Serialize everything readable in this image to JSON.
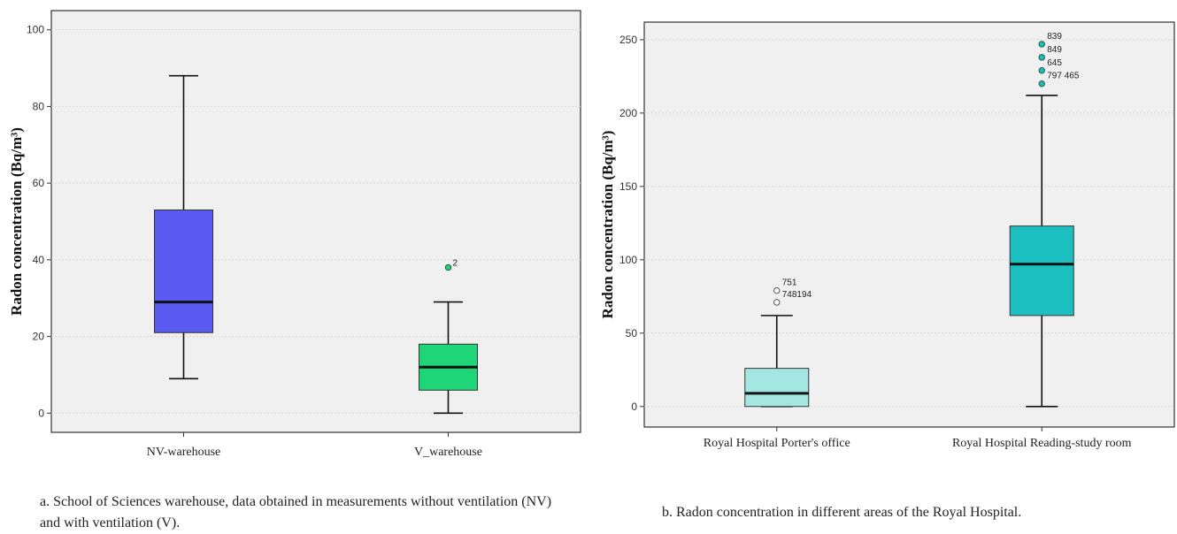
{
  "panels": [
    {
      "caption": "a. School of Sciences warehouse, data obtained in measurements without ventilation (NV) and with ventilation (V).",
      "chart_data": {
        "type": "box",
        "title": "",
        "xlabel": "",
        "ylabel": "Radon concentration (Bq/m³)",
        "ylim": [
          -5,
          105
        ],
        "yticks": [
          0,
          20,
          40,
          60,
          80,
          100
        ],
        "grid": true,
        "categories": [
          "NV-warehouse",
          "V_warehouse"
        ],
        "boxes": [
          {
            "category": "NV-warehouse",
            "min": 9,
            "q1": 21,
            "median": 29,
            "q3": 53,
            "max": 88,
            "color": "#5a5af0",
            "outliers": []
          },
          {
            "category": "V_warehouse",
            "min": 0,
            "q1": 6,
            "median": 12,
            "q3": 18,
            "max": 29,
            "color": "#1ed677",
            "outliers": [
              {
                "value": 38,
                "label": "2",
                "filled": true
              }
            ]
          }
        ]
      }
    },
    {
      "caption": "b. Radon concentration in different areas of the Royal Hospital.",
      "chart_data": {
        "type": "box",
        "title": "",
        "xlabel": "",
        "ylabel": "Radon concentration (Bq/m³)",
        "ylim": [
          -14,
          262
        ],
        "yticks": [
          0,
          50,
          100,
          150,
          200,
          250
        ],
        "grid": true,
        "categories": [
          "Royal Hospital Porter's office",
          "Royal Hospital Reading-study room"
        ],
        "boxes": [
          {
            "category": "Royal Hospital Porter's office",
            "min": 0,
            "q1": 0,
            "median": 9,
            "q3": 26,
            "max": 62,
            "color": "#a3e6e2",
            "outliers": [
              {
                "value": 79,
                "label": "751",
                "filled": false
              },
              {
                "value": 71,
                "label": "748194",
                "filled": false
              }
            ]
          },
          {
            "category": "Royal Hospital Reading-study room",
            "min": 0,
            "q1": 62,
            "median": 97,
            "q3": 123,
            "max": 212,
            "color": "#1cc0c0",
            "outliers": [
              {
                "value": 247,
                "label": "839",
                "filled": true
              },
              {
                "value": 238,
                "label": "849",
                "filled": true
              },
              {
                "value": 229,
                "label": "645",
                "filled": true
              },
              {
                "value": 220,
                "label": "797 465",
                "filled": true
              }
            ]
          }
        ]
      }
    }
  ]
}
